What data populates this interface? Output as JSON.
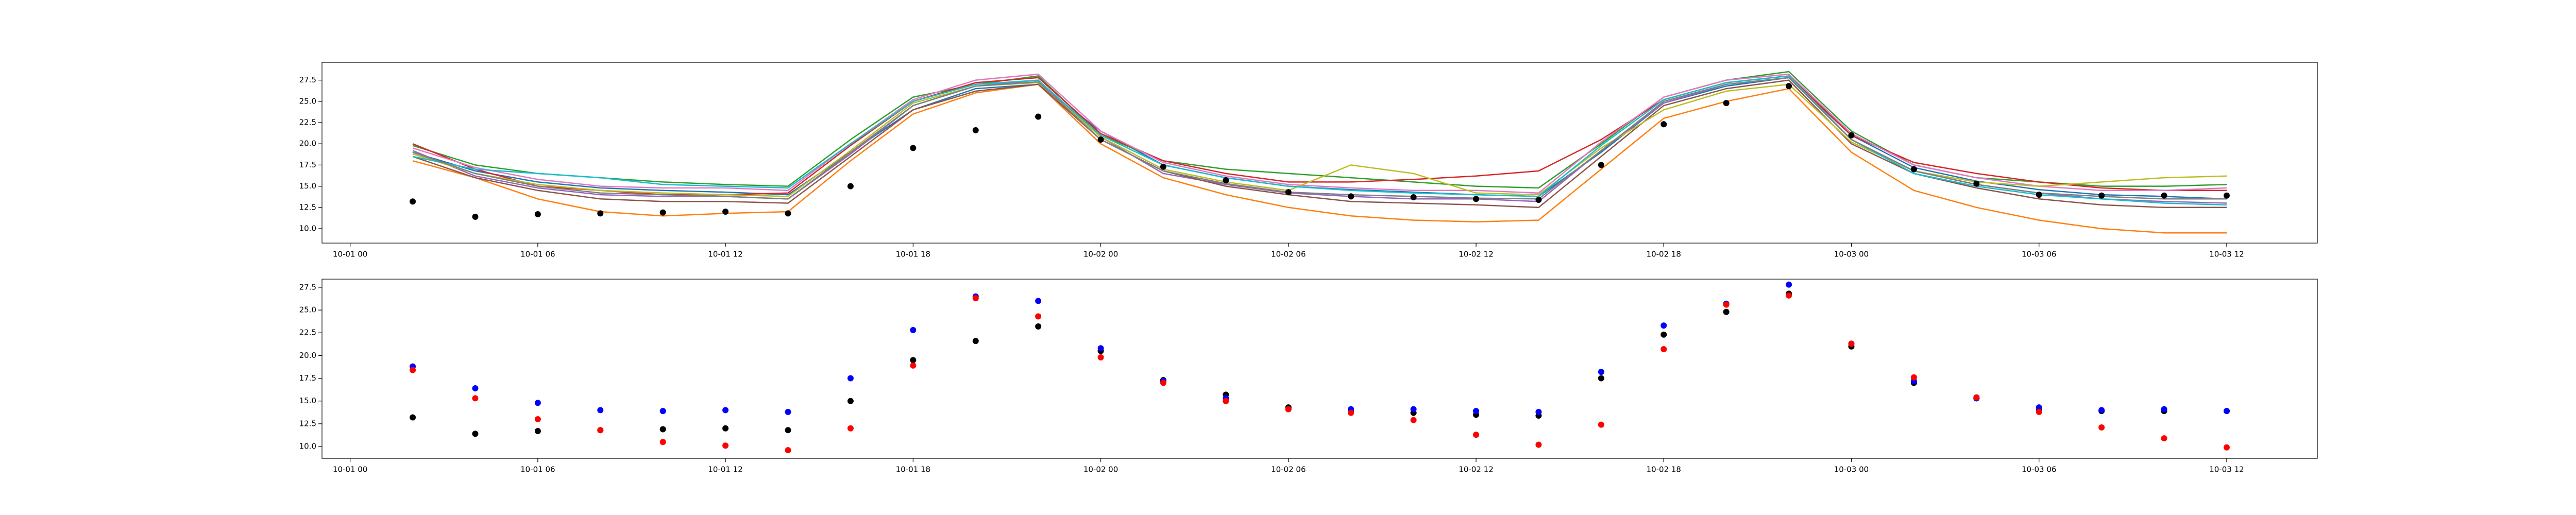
{
  "chart_data": [
    {
      "type": "line",
      "x": [
        "10-01 02",
        "10-01 04",
        "10-01 06",
        "10-01 08",
        "10-01 10",
        "10-01 12",
        "10-01 14",
        "10-01 16",
        "10-01 18",
        "10-01 20",
        "10-01 22",
        "10-02 00",
        "10-02 02",
        "10-02 04",
        "10-02 06",
        "10-02 08",
        "10-02 10",
        "10-02 12",
        "10-02 14",
        "10-02 16",
        "10-02 18",
        "10-02 20",
        "10-02 22",
        "10-03 00",
        "10-03 02",
        "10-03 04",
        "10-03 06",
        "10-03 08",
        "10-03 10",
        "10-03 12"
      ],
      "ylim": [
        8.3,
        29.6
      ],
      "yticks": [
        {
          "value": 10,
          "label": "10.0"
        },
        12.5,
        {
          "value": 15,
          "label": "15.0"
        },
        17.5,
        {
          "value": 20,
          "label": "20.0"
        },
        22.5,
        {
          "value": 25,
          "label": "25.0"
        },
        27.5
      ],
      "xticks": [
        "10-01 00",
        "10-01 06",
        "10-01 12",
        "10-01 18",
        "10-02 00",
        "10-02 06",
        "10-02 12",
        "10-02 18",
        "10-03 00",
        "10-03 06",
        "10-03 12"
      ],
      "series": [
        {
          "kind": "line",
          "color": "#1f77b4",
          "values": [
            19.0,
            16.8,
            15.5,
            14.8,
            14.5,
            14.3,
            14.0,
            19.0,
            24.0,
            26.5,
            27.0,
            21.5,
            17.5,
            16.0,
            15.0,
            14.6,
            14.3,
            14.0,
            13.8,
            19.0,
            24.8,
            26.8,
            27.8,
            21.0,
            17.2,
            15.6,
            14.6,
            14.0,
            13.8,
            13.5
          ]
        },
        {
          "kind": "line",
          "color": "#ff7f0e",
          "values": [
            18.0,
            16.0,
            13.5,
            12.0,
            11.5,
            11.8,
            12.0,
            18.0,
            23.5,
            26.0,
            27.0,
            20.0,
            16.0,
            14.0,
            12.5,
            11.5,
            11.0,
            10.8,
            11.0,
            17.0,
            23.0,
            25.0,
            26.5,
            19.0,
            14.5,
            12.5,
            11.0,
            10.0,
            9.5,
            9.5
          ]
        },
        {
          "kind": "line",
          "color": "#2ca02c",
          "values": [
            19.8,
            17.5,
            16.5,
            16.0,
            15.5,
            15.2,
            15.0,
            20.5,
            25.5,
            27.0,
            28.0,
            21.0,
            18.0,
            17.0,
            16.5,
            16.0,
            15.5,
            15.0,
            14.8,
            20.0,
            25.5,
            27.5,
            28.5,
            21.5,
            17.5,
            16.0,
            15.5,
            15.0,
            15.0,
            15.2
          ]
        },
        {
          "kind": "line",
          "color": "#d62728",
          "values": [
            20.0,
            17.0,
            15.0,
            14.5,
            14.0,
            14.0,
            14.2,
            19.8,
            25.0,
            27.2,
            27.8,
            21.2,
            18.0,
            16.5,
            15.5,
            15.5,
            15.8,
            16.2,
            16.8,
            20.5,
            25.2,
            27.2,
            28.0,
            21.0,
            17.8,
            16.5,
            15.5,
            14.8,
            14.5,
            14.5
          ]
        },
        {
          "kind": "line",
          "color": "#9467bd",
          "values": [
            19.2,
            16.2,
            14.8,
            14.0,
            13.8,
            13.8,
            13.5,
            18.8,
            24.5,
            26.8,
            27.5,
            20.8,
            16.5,
            15.2,
            14.2,
            13.8,
            13.5,
            13.5,
            13.2,
            19.2,
            24.8,
            27.0,
            27.8,
            20.5,
            16.8,
            15.2,
            14.2,
            13.5,
            13.2,
            13.0
          ]
        },
        {
          "kind": "line",
          "color": "#8c564b",
          "values": [
            18.5,
            16.0,
            14.5,
            13.5,
            13.2,
            13.2,
            13.0,
            18.5,
            24.0,
            26.2,
            27.0,
            20.5,
            16.8,
            15.0,
            14.0,
            13.2,
            13.0,
            12.8,
            12.5,
            18.5,
            24.5,
            26.5,
            27.5,
            20.0,
            16.5,
            14.8,
            13.5,
            12.8,
            12.5,
            12.5
          ]
        },
        {
          "kind": "line",
          "color": "#e377c2",
          "values": [
            19.5,
            17.2,
            15.8,
            15.0,
            14.8,
            14.8,
            14.5,
            20.0,
            25.2,
            27.5,
            28.2,
            21.5,
            17.8,
            16.2,
            15.2,
            14.8,
            14.5,
            14.5,
            14.2,
            20.2,
            25.5,
            27.5,
            28.2,
            21.2,
            17.5,
            16.0,
            15.0,
            14.5,
            14.5,
            14.8
          ]
        },
        {
          "kind": "line",
          "color": "#bcbd22",
          "values": [
            18.8,
            16.5,
            15.2,
            14.5,
            14.2,
            14.0,
            13.8,
            19.2,
            24.8,
            26.8,
            27.2,
            20.8,
            17.0,
            15.5,
            14.5,
            17.5,
            16.5,
            14.2,
            14.0,
            19.5,
            24.0,
            26.2,
            27.0,
            20.2,
            16.8,
            15.5,
            15.0,
            15.5,
            16.0,
            16.2
          ]
        },
        {
          "kind": "line",
          "color": "#17becf",
          "values": [
            18.5,
            17.0,
            16.5,
            16.0,
            15.2,
            15.0,
            14.8,
            20.0,
            25.0,
            27.0,
            27.5,
            21.0,
            17.5,
            16.0,
            15.0,
            14.5,
            14.2,
            14.0,
            13.8,
            19.8,
            25.2,
            27.2,
            28.0,
            20.5,
            16.5,
            15.0,
            14.0,
            13.5,
            13.0,
            12.8
          ]
        },
        {
          "kind": "line",
          "color": "#7f7f7f",
          "values": [
            19.0,
            16.5,
            15.0,
            14.2,
            14.0,
            13.8,
            13.5,
            19.0,
            24.5,
            26.8,
            27.3,
            20.5,
            16.8,
            15.3,
            14.3,
            14.0,
            13.8,
            13.6,
            13.5,
            19.2,
            25.0,
            27.0,
            27.8,
            20.5,
            16.8,
            15.2,
            14.2,
            13.8,
            13.5,
            13.5
          ]
        },
        {
          "kind": "scatter",
          "color": "#000000",
          "values": [
            13.2,
            11.4,
            11.7,
            11.8,
            11.9,
            12.0,
            11.8,
            15.0,
            19.5,
            21.6,
            23.2,
            20.5,
            17.3,
            15.7,
            14.3,
            13.8,
            13.7,
            13.5,
            13.4,
            17.5,
            22.3,
            24.8,
            26.8,
            21.0,
            17.0,
            15.3,
            14.0,
            13.9,
            13.9,
            13.9
          ]
        }
      ]
    },
    {
      "type": "scatter",
      "x": [
        "10-01 02",
        "10-01 04",
        "10-01 06",
        "10-01 08",
        "10-01 10",
        "10-01 12",
        "10-01 14",
        "10-01 16",
        "10-01 18",
        "10-01 20",
        "10-01 22",
        "10-02 00",
        "10-02 02",
        "10-02 04",
        "10-02 06",
        "10-02 08",
        "10-02 10",
        "10-02 12",
        "10-02 14",
        "10-02 16",
        "10-02 18",
        "10-02 20",
        "10-02 22",
        "10-03 00",
        "10-03 02",
        "10-03 04",
        "10-03 06",
        "10-03 08",
        "10-03 10",
        "10-03 12"
      ],
      "ylim": [
        8.7,
        28.4
      ],
      "yticks": [
        {
          "value": 10,
          "label": "10.0"
        },
        12.5,
        {
          "value": 15,
          "label": "15.0"
        },
        17.5,
        {
          "value": 20,
          "label": "20.0"
        },
        22.5,
        {
          "value": 25,
          "label": "25.0"
        },
        27.5
      ],
      "xticks": [
        "10-01 00",
        "10-01 06",
        "10-01 12",
        "10-01 18",
        "10-02 00",
        "10-02 06",
        "10-02 12",
        "10-02 18",
        "10-03 00",
        "10-03 06",
        "10-03 12"
      ],
      "series": [
        {
          "kind": "scatter",
          "color": "#000000",
          "values": [
            13.2,
            11.4,
            11.7,
            11.8,
            11.9,
            12.0,
            11.8,
            15.0,
            19.5,
            21.6,
            23.2,
            20.5,
            17.3,
            15.7,
            14.3,
            13.8,
            13.7,
            13.5,
            13.4,
            17.5,
            22.3,
            24.8,
            26.8,
            21.0,
            17.0,
            15.3,
            14.0,
            13.9,
            13.9,
            13.9
          ]
        },
        {
          "kind": "scatter",
          "color": "#0000ff",
          "values": [
            18.8,
            16.4,
            14.8,
            14.0,
            13.9,
            14.0,
            13.8,
            17.5,
            22.8,
            26.5,
            26.0,
            20.8,
            17.2,
            15.3,
            14.1,
            14.1,
            14.1,
            13.9,
            13.8,
            18.2,
            23.3,
            25.7,
            27.8,
            21.3,
            17.2,
            15.3,
            14.3,
            14.0,
            14.1,
            13.9
          ]
        },
        {
          "kind": "scatter",
          "color": "#ff0000",
          "values": [
            18.4,
            15.3,
            13.0,
            11.8,
            10.5,
            10.1,
            9.6,
            12.0,
            18.9,
            26.3,
            24.3,
            19.8,
            17.0,
            15.0,
            14.1,
            13.7,
            12.9,
            11.3,
            10.2,
            12.4,
            20.7,
            25.6,
            26.6,
            21.3,
            17.6,
            15.4,
            13.8,
            12.1,
            10.9,
            9.9
          ]
        }
      ]
    }
  ]
}
